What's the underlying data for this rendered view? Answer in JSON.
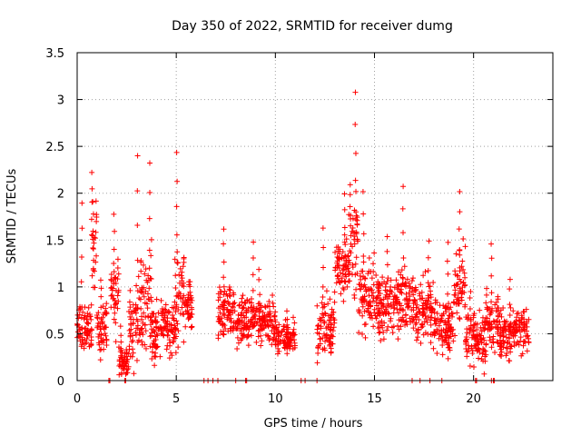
{
  "chart_data": {
    "type": "scatter",
    "title": "Day 350 of 2022, SRMTID for receiver dumg",
    "xlabel": "GPS time / hours",
    "ylabel": "SRMTID / TECUs",
    "xlim": [
      0,
      24
    ],
    "ylim": [
      0,
      3.5
    ],
    "grid": true,
    "marker": "plus",
    "marker_color": "#ff0000",
    "x_ticks": [
      0,
      5,
      10,
      15,
      20
    ],
    "y_ticks": [
      0,
      0.5,
      1,
      1.5,
      2,
      2.5,
      3,
      3.5
    ],
    "x_tick_labels": [
      "0",
      "5",
      "10",
      "15",
      "20"
    ],
    "y_tick_labels": [
      "0",
      "0.5",
      "1",
      "1.5",
      "2",
      "2.5",
      "3",
      "3.5"
    ],
    "segments": [
      {
        "start": 0.0,
        "end": 0.75,
        "center": 0.55,
        "spread": 0.25,
        "peak": 1.9
      },
      {
        "start": 0.75,
        "end": 1.0,
        "center": 1.4,
        "spread": 0.5,
        "peak": 2.25
      },
      {
        "start": 1.0,
        "end": 1.5,
        "center": 0.6,
        "spread": 0.3,
        "peak": 1.1
      },
      {
        "start": 1.7,
        "end": 2.1,
        "center": 0.9,
        "spread": 0.4,
        "peak": 1.8
      },
      {
        "start": 2.1,
        "end": 2.6,
        "center": 0.2,
        "spread": 0.15,
        "peak": 0.6
      },
      {
        "start": 2.6,
        "end": 3.2,
        "center": 0.6,
        "spread": 0.45,
        "peak": 2.4
      },
      {
        "start": 3.2,
        "end": 3.7,
        "center": 0.8,
        "spread": 0.5,
        "peak": 2.35
      },
      {
        "start": 3.7,
        "end": 4.2,
        "center": 0.5,
        "spread": 0.35,
        "peak": 1.55
      },
      {
        "start": 4.2,
        "end": 5.0,
        "center": 0.6,
        "spread": 0.3,
        "peak": 1.3
      },
      {
        "start": 5.0,
        "end": 5.4,
        "center": 1.0,
        "spread": 0.5,
        "peak": 2.47
      },
      {
        "start": 5.4,
        "end": 5.8,
        "center": 0.8,
        "spread": 0.25,
        "peak": 1.1
      },
      {
        "start": 7.1,
        "end": 8.0,
        "center": 0.75,
        "spread": 0.25,
        "peak": 1.65
      },
      {
        "start": 8.0,
        "end": 9.0,
        "center": 0.65,
        "spread": 0.25,
        "peak": 1.5
      },
      {
        "start": 9.0,
        "end": 10.0,
        "center": 0.6,
        "spread": 0.25,
        "peak": 1.2
      },
      {
        "start": 10.0,
        "end": 11.0,
        "center": 0.45,
        "spread": 0.15,
        "peak": 0.75
      },
      {
        "start": 12.1,
        "end": 13.0,
        "center": 0.6,
        "spread": 0.3,
        "peak": 1.65
      },
      {
        "start": 13.0,
        "end": 13.7,
        "center": 1.2,
        "spread": 0.35,
        "peak": 2.0
      },
      {
        "start": 13.7,
        "end": 14.2,
        "center": 1.5,
        "spread": 0.6,
        "peak": 3.1
      },
      {
        "start": 14.2,
        "end": 15.0,
        "center": 0.9,
        "spread": 0.4,
        "peak": 2.05
      },
      {
        "start": 15.0,
        "end": 16.0,
        "center": 0.8,
        "spread": 0.35,
        "peak": 1.55
      },
      {
        "start": 16.0,
        "end": 17.0,
        "center": 0.85,
        "spread": 0.3,
        "peak": 2.1
      },
      {
        "start": 17.0,
        "end": 18.0,
        "center": 0.75,
        "spread": 0.35,
        "peak": 1.5
      },
      {
        "start": 18.0,
        "end": 19.0,
        "center": 0.6,
        "spread": 0.3,
        "peak": 1.5
      },
      {
        "start": 19.0,
        "end": 19.6,
        "center": 1.0,
        "spread": 0.45,
        "peak": 2.05
      },
      {
        "start": 19.6,
        "end": 20.6,
        "center": 0.45,
        "spread": 0.25,
        "peak": 1.0
      },
      {
        "start": 20.6,
        "end": 21.3,
        "center": 0.6,
        "spread": 0.3,
        "peak": 1.5
      },
      {
        "start": 21.3,
        "end": 22.8,
        "center": 0.5,
        "spread": 0.25,
        "peak": 1.1
      }
    ],
    "zero_points_x": [
      1.6,
      1.65,
      2.4,
      2.45,
      6.4,
      6.6,
      6.85,
      7.1,
      8.0,
      8.5,
      8.55,
      11.3,
      11.5,
      12.1,
      16.9,
      17.3,
      17.8,
      18.4,
      20.1,
      20.15,
      20.9,
      21.0,
      21.05
    ]
  }
}
